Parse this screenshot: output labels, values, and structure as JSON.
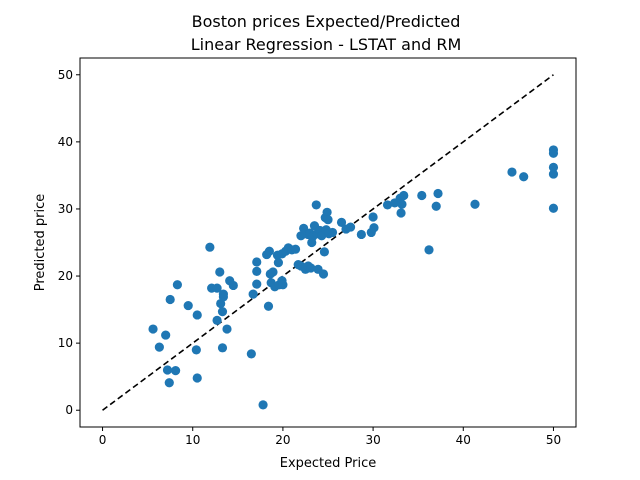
{
  "chart_data": {
    "type": "scatter",
    "title": "Boston prices Expected/Predicted\n Linear Regression - LSTAT and RM",
    "title_lines": [
      "Boston prices Expected/Predicted",
      "Linear Regression - LSTAT and RM"
    ],
    "xlabel": "Expected Price",
    "ylabel": "Predicted price",
    "xlim": [
      -2.5,
      52.5
    ],
    "ylim": [
      -2.5,
      52.5
    ],
    "xticks": [
      0,
      10,
      20,
      30,
      40,
      50
    ],
    "yticks": [
      0,
      10,
      20,
      30,
      40,
      50
    ],
    "grid": false,
    "legend": "none",
    "point_color": "#1f77b4",
    "reference_line": {
      "style": "dashed",
      "color": "#000000",
      "x": [
        0,
        50
      ],
      "y": [
        0,
        50
      ]
    },
    "points": [
      {
        "x": 5.6,
        "y": 12.1
      },
      {
        "x": 6.3,
        "y": 9.4
      },
      {
        "x": 7.0,
        "y": 11.2
      },
      {
        "x": 7.2,
        "y": 6.0
      },
      {
        "x": 7.4,
        "y": 4.1
      },
      {
        "x": 7.5,
        "y": 16.5
      },
      {
        "x": 8.1,
        "y": 5.9
      },
      {
        "x": 8.3,
        "y": 18.7
      },
      {
        "x": 9.5,
        "y": 15.6
      },
      {
        "x": 10.4,
        "y": 9.0
      },
      {
        "x": 10.5,
        "y": 14.2
      },
      {
        "x": 10.5,
        "y": 4.8
      },
      {
        "x": 11.9,
        "y": 24.3
      },
      {
        "x": 12.1,
        "y": 18.2
      },
      {
        "x": 12.7,
        "y": 18.2
      },
      {
        "x": 12.7,
        "y": 13.4
      },
      {
        "x": 13.0,
        "y": 20.6
      },
      {
        "x": 13.1,
        "y": 15.9
      },
      {
        "x": 13.3,
        "y": 9.3
      },
      {
        "x": 13.3,
        "y": 14.7
      },
      {
        "x": 13.4,
        "y": 16.9
      },
      {
        "x": 13.4,
        "y": 17.3
      },
      {
        "x": 13.8,
        "y": 12.1
      },
      {
        "x": 14.1,
        "y": 19.3
      },
      {
        "x": 14.5,
        "y": 18.6
      },
      {
        "x": 16.5,
        "y": 8.4
      },
      {
        "x": 16.7,
        "y": 17.3
      },
      {
        "x": 17.1,
        "y": 22.1
      },
      {
        "x": 17.1,
        "y": 20.7
      },
      {
        "x": 17.1,
        "y": 18.8
      },
      {
        "x": 17.8,
        "y": 0.8
      },
      {
        "x": 18.2,
        "y": 23.2
      },
      {
        "x": 18.4,
        "y": 15.5
      },
      {
        "x": 18.5,
        "y": 23.7
      },
      {
        "x": 18.6,
        "y": 20.3
      },
      {
        "x": 18.7,
        "y": 19.0
      },
      {
        "x": 18.9,
        "y": 20.6
      },
      {
        "x": 19.1,
        "y": 18.4
      },
      {
        "x": 19.4,
        "y": 23.1
      },
      {
        "x": 19.5,
        "y": 22.0
      },
      {
        "x": 19.6,
        "y": 18.7
      },
      {
        "x": 19.9,
        "y": 19.3
      },
      {
        "x": 19.9,
        "y": 23.3
      },
      {
        "x": 20.0,
        "y": 18.7
      },
      {
        "x": 20.3,
        "y": 23.7
      },
      {
        "x": 20.6,
        "y": 24.2
      },
      {
        "x": 21.0,
        "y": 23.9
      },
      {
        "x": 21.4,
        "y": 24.0
      },
      {
        "x": 21.7,
        "y": 21.7
      },
      {
        "x": 22.0,
        "y": 21.5
      },
      {
        "x": 22.0,
        "y": 26.0
      },
      {
        "x": 22.3,
        "y": 27.1
      },
      {
        "x": 22.4,
        "y": 26.3
      },
      {
        "x": 22.5,
        "y": 21.0
      },
      {
        "x": 22.8,
        "y": 21.5
      },
      {
        "x": 22.8,
        "y": 26.2
      },
      {
        "x": 23.0,
        "y": 26.4
      },
      {
        "x": 23.1,
        "y": 21.2
      },
      {
        "x": 23.2,
        "y": 25.0
      },
      {
        "x": 23.3,
        "y": 25.9
      },
      {
        "x": 23.5,
        "y": 27.5
      },
      {
        "x": 23.7,
        "y": 30.6
      },
      {
        "x": 23.8,
        "y": 26.3
      },
      {
        "x": 23.9,
        "y": 21.0
      },
      {
        "x": 24.1,
        "y": 26.8
      },
      {
        "x": 24.3,
        "y": 26.0
      },
      {
        "x": 24.5,
        "y": 20.3
      },
      {
        "x": 24.6,
        "y": 23.6
      },
      {
        "x": 24.7,
        "y": 28.7
      },
      {
        "x": 24.8,
        "y": 26.9
      },
      {
        "x": 24.9,
        "y": 29.5
      },
      {
        "x": 25.0,
        "y": 28.4
      },
      {
        "x": 25.1,
        "y": 26.3
      },
      {
        "x": 25.5,
        "y": 26.5
      },
      {
        "x": 26.5,
        "y": 28.0
      },
      {
        "x": 27.0,
        "y": 27.0
      },
      {
        "x": 27.5,
        "y": 27.3
      },
      {
        "x": 28.7,
        "y": 26.2
      },
      {
        "x": 29.8,
        "y": 26.5
      },
      {
        "x": 30.0,
        "y": 28.8
      },
      {
        "x": 30.1,
        "y": 27.2
      },
      {
        "x": 31.6,
        "y": 30.6
      },
      {
        "x": 32.4,
        "y": 30.9
      },
      {
        "x": 33.0,
        "y": 31.6
      },
      {
        "x": 33.1,
        "y": 29.4
      },
      {
        "x": 33.2,
        "y": 30.7
      },
      {
        "x": 33.4,
        "y": 32.0
      },
      {
        "x": 35.4,
        "y": 32.0
      },
      {
        "x": 36.2,
        "y": 23.9
      },
      {
        "x": 37.2,
        "y": 32.3
      },
      {
        "x": 37.0,
        "y": 30.4
      },
      {
        "x": 41.3,
        "y": 30.7
      },
      {
        "x": 45.4,
        "y": 35.5
      },
      {
        "x": 46.7,
        "y": 34.8
      },
      {
        "x": 50.0,
        "y": 38.8
      },
      {
        "x": 50.0,
        "y": 38.3
      },
      {
        "x": 50.0,
        "y": 36.2
      },
      {
        "x": 50.0,
        "y": 35.2
      },
      {
        "x": 50.0,
        "y": 30.1
      }
    ]
  }
}
